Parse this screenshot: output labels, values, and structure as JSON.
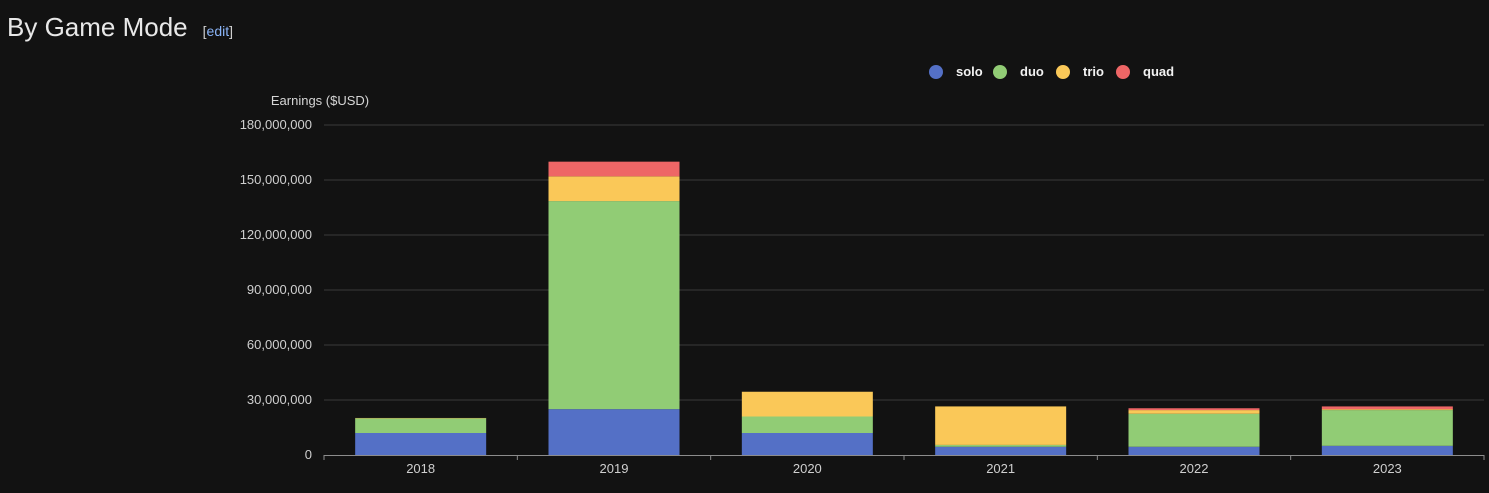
{
  "heading": {
    "title": "By Game Mode",
    "edit_open": "[",
    "edit_label": "edit",
    "edit_close": "]"
  },
  "colors": {
    "solo": "#5470c6",
    "duo": "#91cc75",
    "trio": "#fac858",
    "quad": "#ee6666",
    "grid": "#3a3a3a",
    "axis": "#8c8c8c"
  },
  "chart_data": {
    "type": "bar",
    "stacked": true,
    "ylabel": "Earnings ($USD)",
    "xlabel": "",
    "ylim": [
      0,
      180000000
    ],
    "yticks": [
      0,
      30000000,
      60000000,
      90000000,
      120000000,
      150000000,
      180000000
    ],
    "ytick_labels": [
      "0",
      "30,000,000",
      "60,000,000",
      "90,000,000",
      "120,000,000",
      "150,000,000",
      "180,000,000"
    ],
    "grid": true,
    "legend_position": "top-right",
    "categories": [
      "2018",
      "2019",
      "2020",
      "2021",
      "2022",
      "2023"
    ],
    "series": [
      {
        "name": "solo",
        "values": [
          12000000,
          25000000,
          12000000,
          4500000,
          4500000,
          5000000
        ]
      },
      {
        "name": "duo",
        "values": [
          8000000,
          113500000,
          9000000,
          1000000,
          18000000,
          19500000
        ]
      },
      {
        "name": "trio",
        "values": [
          200000,
          13500000,
          13500000,
          21000000,
          2000000,
          500000
        ]
      },
      {
        "name": "quad",
        "values": [
          0,
          8000000,
          0,
          0,
          1000000,
          1500000
        ]
      }
    ]
  }
}
